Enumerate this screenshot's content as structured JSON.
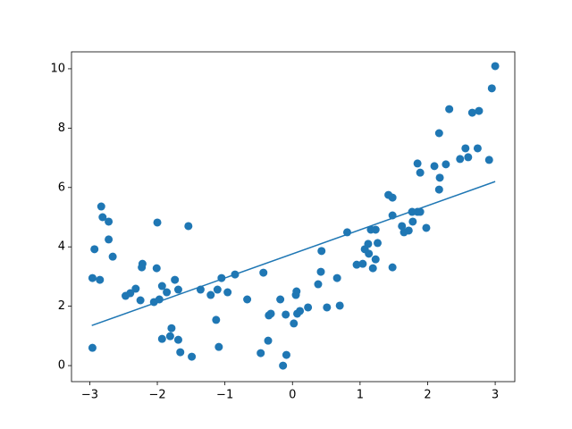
{
  "chart_data": {
    "type": "scatter",
    "xlim": [
      -3.27,
      3.29
    ],
    "ylim": [
      -0.54,
      10.57
    ],
    "xticks": [
      {
        "value": -3,
        "label": "−3"
      },
      {
        "value": -2,
        "label": "−2"
      },
      {
        "value": -1,
        "label": "−1"
      },
      0,
      1,
      2,
      3
    ],
    "yticks": [
      0,
      2,
      4,
      6,
      8,
      10
    ],
    "grid": false,
    "series": [
      {
        "kind": "scatter",
        "color": "#1f77b4",
        "x": [
          -2.96,
          -2.96,
          -2.93,
          -2.85,
          -2.83,
          -2.81,
          -2.72,
          -2.72,
          -2.66,
          -2.47,
          -2.4,
          -2.32,
          -2.25,
          -2.23,
          -2.22,
          -2.05,
          -2.01,
          -2.0,
          -1.97,
          -1.93,
          -1.93,
          -1.86,
          -1.79,
          -1.81,
          -1.74,
          -1.69,
          -1.69,
          -1.66,
          -1.54,
          -1.49,
          -1.36,
          -1.21,
          -1.13,
          -1.11,
          -1.09,
          -1.05,
          -0.96,
          -0.85,
          -0.67,
          -0.47,
          -0.43,
          -0.36,
          -0.35,
          -0.32,
          -0.18,
          -0.14,
          -0.1,
          -0.09,
          0.02,
          0.05,
          0.06,
          0.07,
          0.11,
          0.23,
          0.38,
          0.42,
          0.43,
          0.51,
          0.66,
          0.7,
          0.81,
          0.95,
          1.04,
          1.07,
          1.12,
          1.13,
          1.16,
          1.19,
          1.23,
          1.23,
          1.26,
          1.42,
          1.48,
          1.48,
          1.48,
          1.62,
          1.65,
          1.72,
          1.77,
          1.78,
          1.85,
          1.85,
          1.89,
          1.89,
          1.98,
          2.1,
          2.17,
          2.18,
          2.17,
          2.27,
          2.32,
          2.48,
          2.56,
          2.6,
          2.66,
          2.74,
          2.76,
          2.91,
          2.95,
          3.0
        ],
        "values": [
          0.6,
          2.95,
          3.92,
          2.89,
          5.36,
          5.0,
          4.85,
          4.25,
          3.67,
          2.35,
          2.44,
          2.59,
          2.2,
          3.31,
          3.43,
          2.14,
          3.28,
          4.82,
          2.23,
          2.68,
          0.9,
          2.47,
          1.26,
          0.99,
          2.89,
          0.87,
          2.56,
          0.45,
          4.7,
          0.3,
          2.56,
          2.38,
          1.54,
          2.56,
          0.63,
          2.95,
          2.47,
          3.07,
          2.23,
          0.42,
          3.13,
          0.84,
          1.69,
          1.75,
          2.23,
          0.0,
          1.72,
          0.36,
          1.42,
          2.38,
          2.5,
          1.75,
          1.84,
          1.96,
          2.74,
          3.16,
          3.86,
          1.96,
          2.95,
          2.02,
          4.49,
          3.4,
          3.43,
          3.92,
          4.1,
          3.77,
          4.58,
          3.28,
          4.58,
          3.58,
          4.13,
          5.75,
          5.66,
          3.31,
          5.06,
          4.7,
          4.49,
          4.55,
          5.18,
          4.85,
          6.81,
          5.18,
          6.5,
          5.18,
          4.64,
          6.72,
          7.83,
          6.33,
          5.93,
          6.78,
          8.64,
          6.96,
          7.32,
          7.02,
          8.52,
          7.32,
          8.58,
          6.93,
          9.34,
          10.09
        ]
      },
      {
        "kind": "line",
        "color": "#1f77b4",
        "x": [
          -2.97,
          3.0
        ],
        "values": [
          1.35,
          6.2
        ]
      }
    ]
  }
}
